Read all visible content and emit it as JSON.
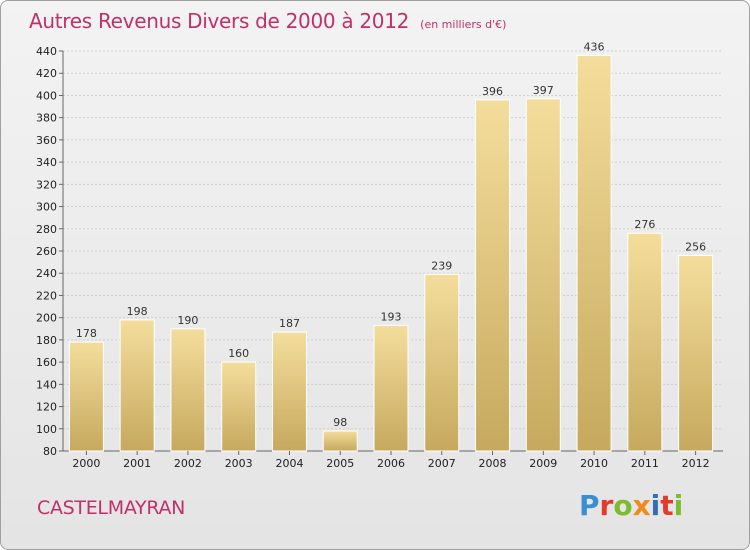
{
  "title": "Autres Revenus Divers de 2000 à 2012",
  "subtitle": "(en milliers d'€)",
  "commune": "CASTELMAYRAN",
  "logo": {
    "text": "Proxiti",
    "colors": [
      "#3a8fd0",
      "#e23b2e",
      "#7dbb2f",
      "#f08a1c",
      "#2e6fb8",
      "#e23b2e",
      "#7dbb2f"
    ]
  },
  "colors": {
    "title": "#c0306a",
    "bar_light": "#f3dc9a",
    "bar_dark": "#c8ab60"
  },
  "chart_data": {
    "type": "bar",
    "categories": [
      "2000",
      "2001",
      "2002",
      "2003",
      "2004",
      "2005",
      "2006",
      "2007",
      "2008",
      "2009",
      "2010",
      "2011",
      "2012"
    ],
    "values": [
      178,
      198,
      190,
      160,
      187,
      98,
      193,
      239,
      396,
      397,
      436,
      276,
      256
    ],
    "title": "Autres Revenus Divers de 2000 à 2012",
    "subtitle": "(en milliers d'€)",
    "ylim": [
      80,
      440
    ],
    "yticks": [
      80,
      100,
      120,
      140,
      160,
      180,
      200,
      220,
      240,
      260,
      280,
      300,
      320,
      340,
      360,
      380,
      400,
      420,
      440
    ],
    "grid": true,
    "data_labels": true
  }
}
